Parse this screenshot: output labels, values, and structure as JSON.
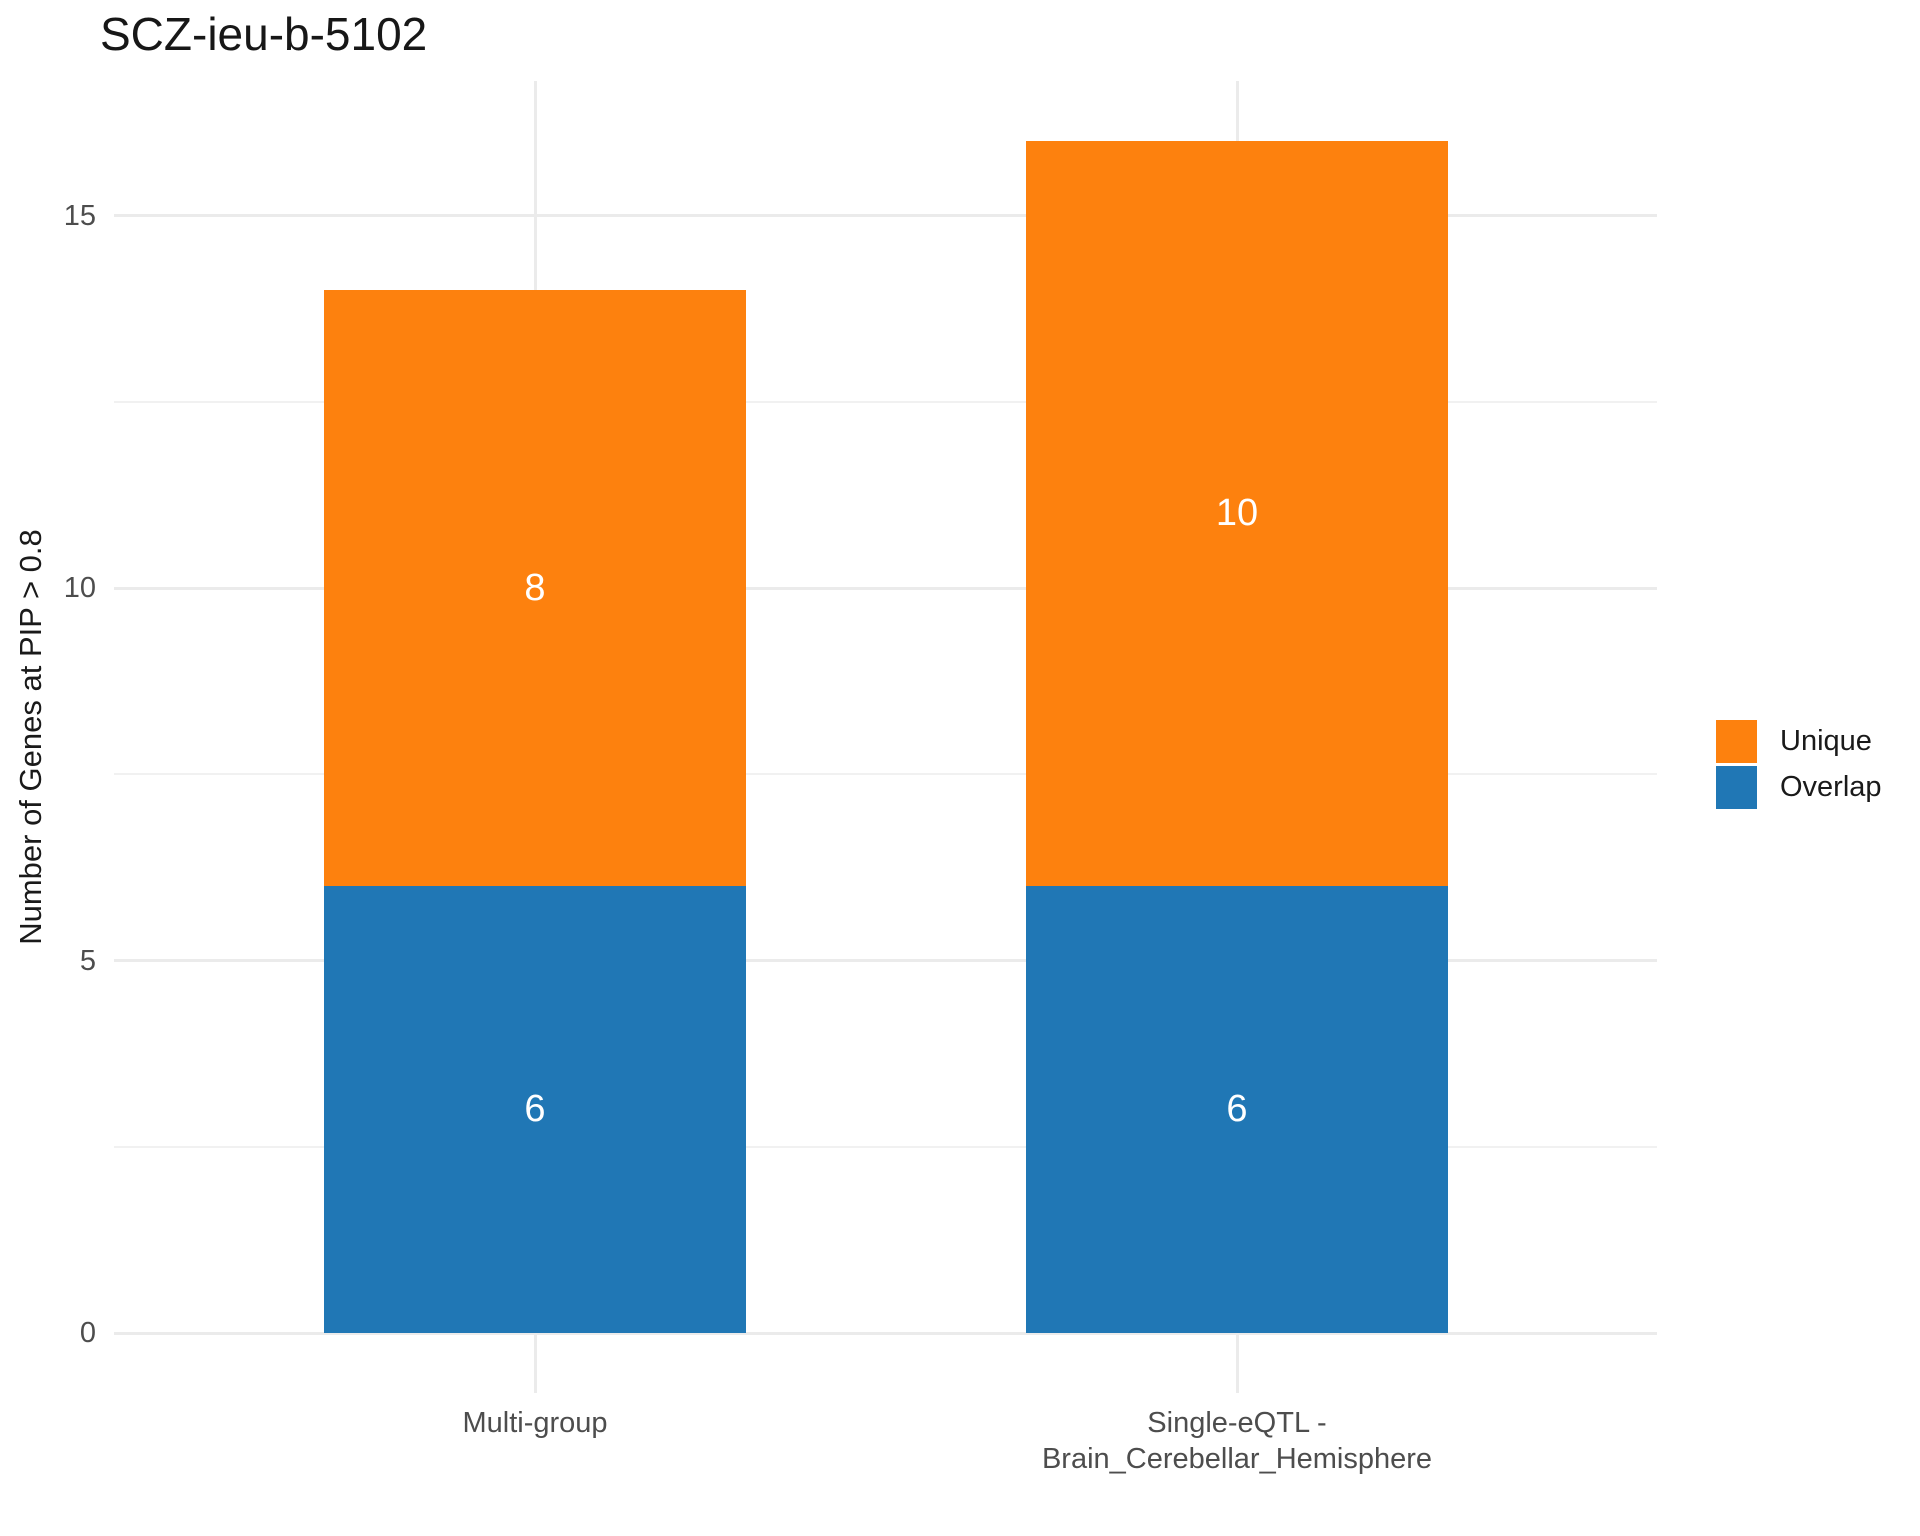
{
  "chart_data": {
    "type": "bar",
    "stacked": true,
    "title": "SCZ-ieu-b-5102",
    "xlabel": "",
    "ylabel": "Number of Genes at PIP > 0.8",
    "categories": [
      "Multi-group",
      "Single-eQTL -\nBrain_Cerebellar_Hemisphere"
    ],
    "series": [
      {
        "name": "Overlap",
        "color": "#2077B5",
        "values": [
          6,
          6
        ]
      },
      {
        "name": "Unique",
        "color": "#FD810E",
        "values": [
          8,
          10
        ]
      }
    ],
    "totals": [
      14,
      16
    ],
    "bar_value_labels": [
      [
        {
          "segment": "Overlap",
          "text": "6"
        },
        {
          "segment": "Unique",
          "text": "8"
        }
      ],
      [
        {
          "segment": "Overlap",
          "text": "6"
        },
        {
          "segment": "Unique",
          "text": "10"
        }
      ]
    ],
    "ylim": [
      0,
      16.8
    ],
    "y_ticks": [
      "0",
      "5",
      "10",
      "15"
    ],
    "y_tick_values": [
      0,
      5,
      10,
      15
    ],
    "y_minor_tick_values": [
      2.5,
      7.5,
      12.5
    ],
    "grid": true,
    "legend": {
      "position": "right",
      "entries": [
        {
          "label": "Unique",
          "color": "#FD810E"
        },
        {
          "label": "Overlap",
          "color": "#2077B5"
        }
      ]
    }
  },
  "colors": {
    "background": "#FFFFFF",
    "grid_major": "#EBEBEB",
    "grid_minor": "#F1F1F1",
    "axis_text": "#4D4D4D",
    "title_text": "#171717",
    "bar_label_text": "#FFFFFF"
  }
}
